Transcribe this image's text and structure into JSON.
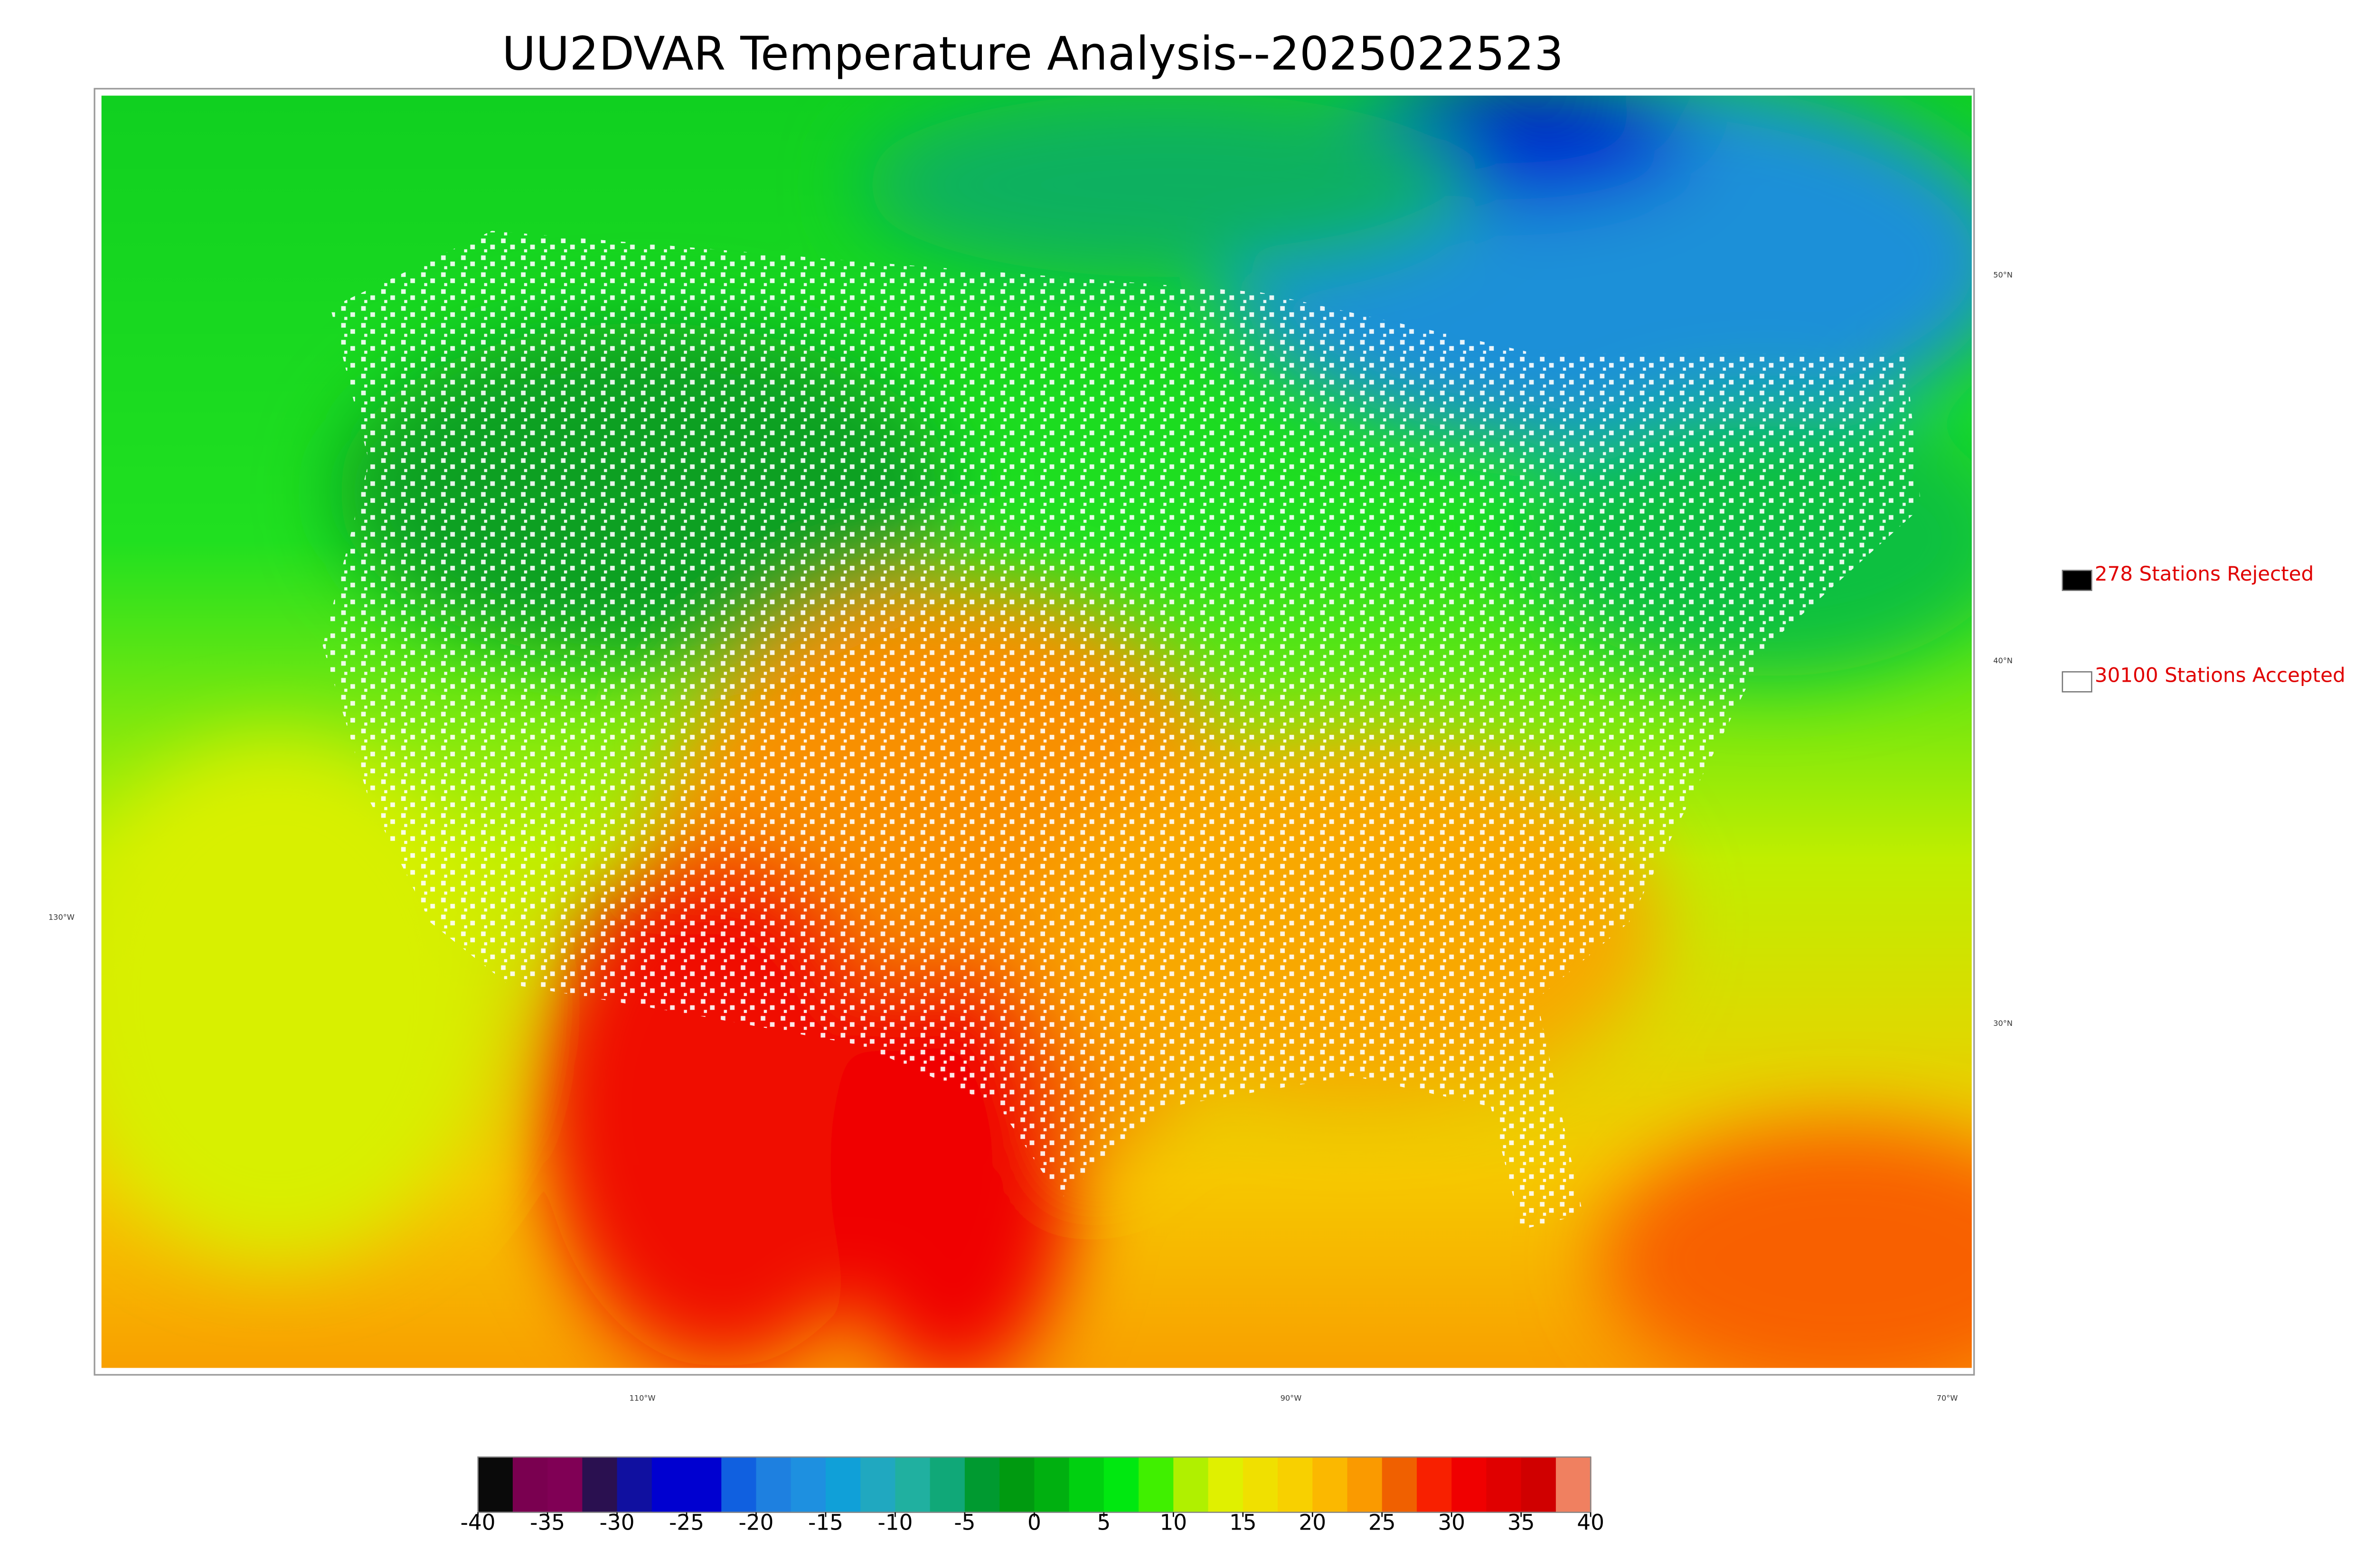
{
  "title": "UU2DVAR Temperature Analysis--2025022523",
  "legend": [
    {
      "label": "278 Stations Rejected",
      "color": "#000000"
    },
    {
      "label": "30100 Stations Accepted",
      "color": "#ffffff"
    }
  ],
  "map": {
    "lat_labels": [
      "50°N",
      "40°N",
      "30°N"
    ],
    "lon_labels": [
      "130°W",
      "110°W",
      "90°W",
      "70°W"
    ]
  },
  "colorbar": {
    "lim": [
      -40,
      40
    ],
    "ticks": [
      -40,
      -35,
      -30,
      -25,
      -20,
      -15,
      -10,
      -5,
      0,
      5,
      10,
      15,
      20,
      25,
      30,
      35,
      40
    ],
    "colors": [
      "#0a0a0a",
      "#7a0050",
      "#800055",
      "#2a1050",
      "#1010a0",
      "#0000d0",
      "#0000d0",
      "#1060e0",
      "#1e80e0",
      "#1e90e0",
      "#10a0d8",
      "#20a8c0",
      "#20b0a0",
      "#10a878",
      "#009a30",
      "#009a10",
      "#00b010",
      "#00d010",
      "#00e810",
      "#40f000",
      "#b0f000",
      "#e0f000",
      "#f0e000",
      "#f8d000",
      "#fbb800",
      "#fa9a00",
      "#f06000",
      "#f82000",
      "#f00000",
      "#e00000",
      "#d00000",
      "#f08060"
    ]
  }
}
